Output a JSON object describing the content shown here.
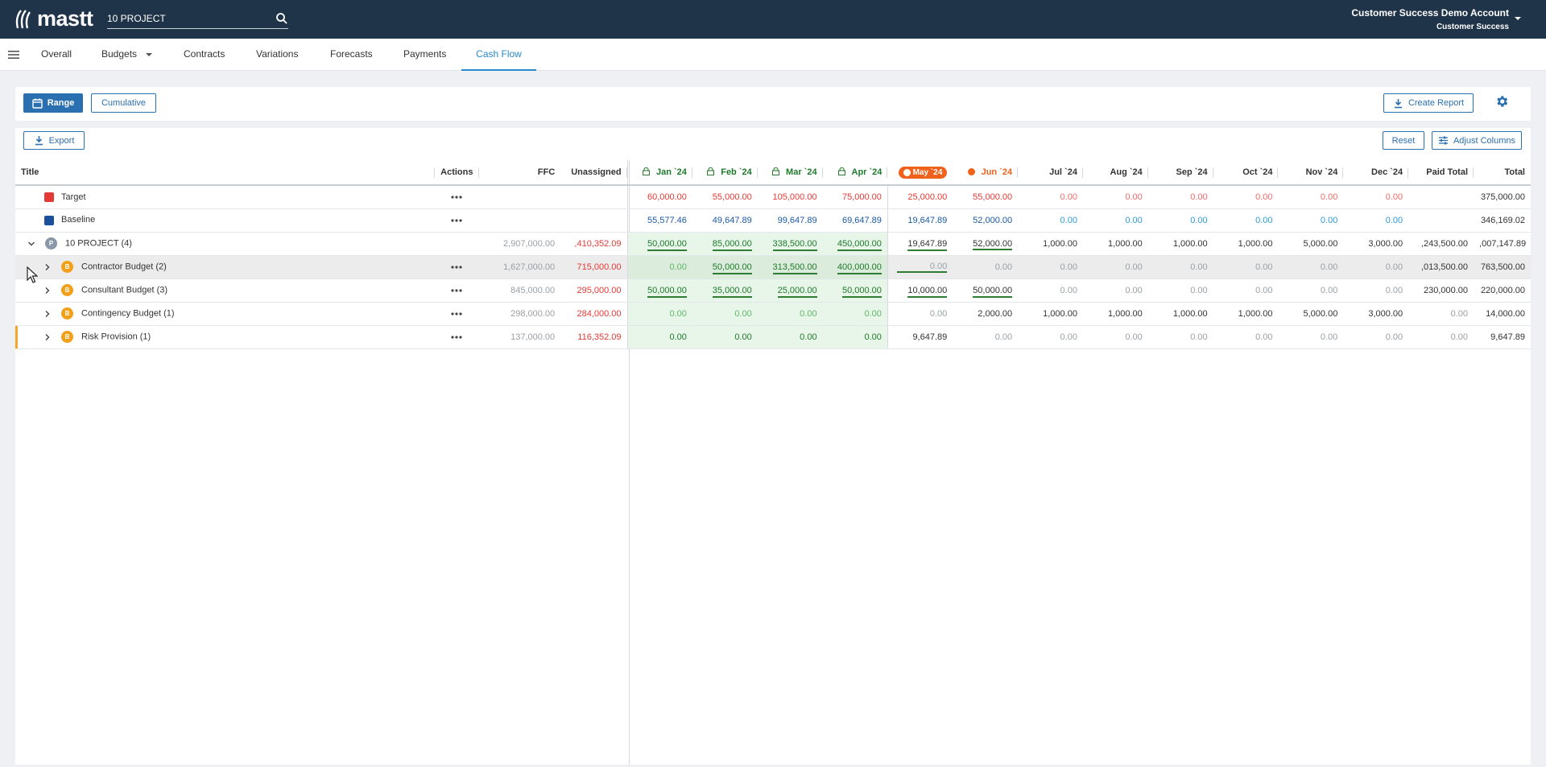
{
  "header": {
    "logo_text": "mastt",
    "search_value": "10 PROJECT",
    "account_name": "Customer Success Demo Account",
    "account_role": "Customer Success"
  },
  "nav": {
    "tabs": [
      {
        "label": "Overall"
      },
      {
        "label": "Budgets"
      },
      {
        "label": "Contracts"
      },
      {
        "label": "Variations"
      },
      {
        "label": "Forecasts"
      },
      {
        "label": "Payments"
      },
      {
        "label": "Cash Flow"
      }
    ],
    "active": "Cash Flow"
  },
  "toolbar": {
    "range": "Range",
    "cumulative": "Cumulative",
    "create_report": "Create Report"
  },
  "panel": {
    "export": "Export",
    "reset": "Reset",
    "adjust_columns": "Adjust Columns"
  },
  "table": {
    "headers": {
      "title": "Title",
      "actions": "Actions",
      "ffc": "FFC",
      "unassigned": "Unassigned",
      "months": [
        "Jan `24",
        "Feb `24",
        "Mar `24",
        "Apr `24",
        "May `24",
        "Jun `24",
        "Jul `24",
        "Aug `24",
        "Sep `24",
        "Oct `24",
        "Nov `24",
        "Dec `24"
      ],
      "paid_total": "Paid Total",
      "total": "Total"
    },
    "rows": {
      "target": {
        "title": "Target",
        "months": [
          "60,000.00",
          "55,000.00",
          "105,000.00",
          "75,000.00",
          "25,000.00",
          "55,000.00",
          "0.00",
          "0.00",
          "0.00",
          "0.00",
          "0.00",
          "0.00"
        ],
        "total": "375,000.00"
      },
      "baseline": {
        "title": "Baseline",
        "months": [
          "55,577.46",
          "49,647.89",
          "99,647.89",
          "69,647.89",
          "19,647.89",
          "52,000.00",
          "0.00",
          "0.00",
          "0.00",
          "0.00",
          "0.00",
          "0.00"
        ],
        "total": "346,169.02"
      },
      "project": {
        "badge": "P",
        "title": "10 PROJECT",
        "count": "(4)",
        "ffc": "2,907,000.00",
        "unassigned": ",410,352.09",
        "months": [
          "50,000.00",
          "85,000.00",
          "338,500.00",
          "450,000.00",
          "19,647.89",
          "52,000.00",
          "1,000.00",
          "1,000.00",
          "1,000.00",
          "1,000.00",
          "5,000.00",
          "3,000.00"
        ],
        "paid_total": ",243,500.00",
        "total": ",007,147.89"
      },
      "contractor": {
        "badge": "B",
        "title": "Contractor Budget",
        "count": "(2)",
        "ffc": "1,627,000.00",
        "unassigned": "715,000.00",
        "months": [
          "0.00",
          "50,000.00",
          "313,500.00",
          "400,000.00",
          "0.00",
          "0.00",
          "0.00",
          "0.00",
          "0.00",
          "0.00",
          "0.00",
          "0.00"
        ],
        "paid_total": ",013,500.00",
        "total": "763,500.00"
      },
      "consultant": {
        "badge": "B",
        "title": "Consultant Budget",
        "count": "(3)",
        "ffc": "845,000.00",
        "unassigned": "295,000.00",
        "months": [
          "50,000.00",
          "35,000.00",
          "25,000.00",
          "50,000.00",
          "10,000.00",
          "50,000.00",
          "0.00",
          "0.00",
          "0.00",
          "0.00",
          "0.00",
          "0.00"
        ],
        "paid_total": "230,000.00",
        "total": "220,000.00"
      },
      "contingency": {
        "badge": "B",
        "title": "Contingency Budget",
        "count": "(1)",
        "ffc": "298,000.00",
        "unassigned": "284,000.00",
        "months": [
          "0.00",
          "0.00",
          "0.00",
          "0.00",
          "0.00",
          "2,000.00",
          "1,000.00",
          "1,000.00",
          "1,000.00",
          "1,000.00",
          "5,000.00",
          "3,000.00"
        ],
        "paid_total": "0.00",
        "total": "14,000.00"
      },
      "risk": {
        "badge": "B",
        "title": "Risk Provision",
        "count": "(1)",
        "ffc": "137,000.00",
        "unassigned": "116,352.09",
        "months": [
          "0.00",
          "0.00",
          "0.00",
          "0.00",
          "9,647.89",
          "0.00",
          "0.00",
          "0.00",
          "0.00",
          "0.00",
          "0.00",
          "0.00"
        ],
        "paid_total": "0.00",
        "total": "9,647.89"
      }
    }
  },
  "colors": {
    "topbar": "#1f3349",
    "accent": "#2a8ac9",
    "button": "#2a6fb0",
    "target": "#e53935",
    "baseline": "#1a4f9c",
    "current_month": "#f0611c",
    "paid_green": "#1d7a2a",
    "risk_marker": "#f5a623"
  },
  "icons": [
    "logo-icon",
    "search-icon",
    "chevron-down-icon",
    "menu-icon",
    "calendar-icon",
    "download-icon",
    "gear-icon",
    "sliders-icon",
    "lock-icon",
    "more-icon",
    "chevron-right-icon",
    "cursor-icon"
  ]
}
